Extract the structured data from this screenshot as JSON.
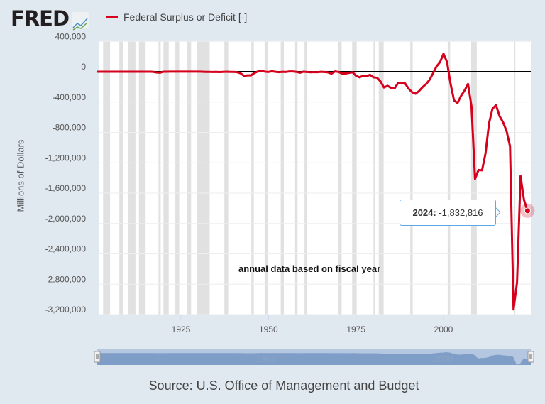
{
  "header": {
    "logo": "FRED",
    "logo_icon": "line-chart-icon"
  },
  "source": "Source: U.S. Office of Management and Budget",
  "tooltip": {
    "label": "2024:",
    "value": "-1,832,816"
  },
  "annotation": "annual data based on fiscal year",
  "navigator": {
    "tick_labels": [
      "1950",
      "2000"
    ]
  },
  "chart_data": {
    "type": "line",
    "title": "",
    "xlabel": "",
    "ylabel": "Millions of Dollars",
    "xlim": [
      1901,
      2024
    ],
    "ylim": [
      -3200000,
      400000
    ],
    "x_ticks": [
      "1925",
      "1950",
      "1975",
      "2000"
    ],
    "y_ticks": [
      "400,000",
      "0",
      "-400,000",
      "-800,000",
      "-1,200,000",
      "-1,600,000",
      "-2,000,000",
      "-2,400,000",
      "-2,800,000",
      "-3,200,000"
    ],
    "grid": true,
    "legend": "top-left",
    "series": [
      {
        "name": "Federal Surplus or Deficit [-]",
        "color": "#d6001c",
        "x": [
          1901,
          1902,
          1903,
          1904,
          1905,
          1906,
          1907,
          1908,
          1909,
          1910,
          1911,
          1912,
          1913,
          1914,
          1915,
          1916,
          1917,
          1918,
          1919,
          1920,
          1921,
          1922,
          1923,
          1924,
          1925,
          1926,
          1927,
          1928,
          1929,
          1930,
          1931,
          1932,
          1933,
          1934,
          1935,
          1936,
          1937,
          1938,
          1939,
          1940,
          1941,
          1942,
          1943,
          1944,
          1945,
          1946,
          1947,
          1948,
          1949,
          1950,
          1951,
          1952,
          1953,
          1954,
          1955,
          1956,
          1957,
          1958,
          1959,
          1960,
          1961,
          1962,
          1963,
          1964,
          1965,
          1966,
          1967,
          1968,
          1969,
          1970,
          1971,
          1972,
          1973,
          1974,
          1975,
          1976,
          1977,
          1978,
          1979,
          1980,
          1981,
          1982,
          1983,
          1984,
          1985,
          1986,
          1987,
          1988,
          1989,
          1990,
          1991,
          1992,
          1993,
          1994,
          1995,
          1996,
          1997,
          1998,
          1999,
          2000,
          2001,
          2002,
          2003,
          2004,
          2005,
          2006,
          2007,
          2008,
          2009,
          2010,
          2011,
          2012,
          2013,
          2014,
          2015,
          2016,
          2017,
          2018,
          2019,
          2020,
          2021,
          2022,
          2023,
          2024
        ],
        "values": [
          63,
          77,
          54,
          -23,
          -23,
          25,
          87,
          -57,
          -89,
          -18,
          11,
          3,
          0,
          -1,
          -63,
          48,
          -853,
          -9032,
          -13363,
          291,
          509,
          736,
          713,
          963,
          717,
          865,
          1155,
          939,
          734,
          738,
          -462,
          -2735,
          -2602,
          -3586,
          -2803,
          -4304,
          -2193,
          -89,
          -2846,
          -2920,
          -4941,
          -20503,
          -54554,
          -47557,
          -47553,
          -15936,
          4018,
          11796,
          580,
          -3119,
          6102,
          -1519,
          -6493,
          -1154,
          -2993,
          3947,
          3412,
          -2769,
          -12849,
          301,
          -3335,
          -7146,
          -4756,
          -5915,
          -1411,
          -3698,
          -8643,
          -25161,
          3242,
          -2842,
          -23033,
          -23373,
          -14908,
          -6135,
          -53242,
          -73732,
          -53659,
          -59185,
          -40726,
          -73830,
          -78968,
          -127977,
          -207802,
          -185367,
          -212308,
          -221227,
          -149730,
          -155178,
          -152639,
          -221036,
          -269238,
          -290321,
          -255051,
          -203186,
          -163952,
          -107431,
          -21884,
          69270,
          125610,
          236241,
          128236,
          -157758,
          -377585,
          -412727,
          -318346,
          -248181,
          -160701,
          -458553,
          -1412688,
          -1294373,
          -1299599,
          -1076573,
          -679775,
          -484600,
          -441960,
          -584651,
          -665446,
          -779137,
          -983587,
          -3132460,
          -2775306,
          -1375905,
          -1693708,
          -1832816
        ]
      }
    ],
    "recessions": [
      [
        1902.75,
        1904.75
      ],
      [
        1907.4,
        1908.5
      ],
      [
        1910,
        1912
      ],
      [
        1913,
        1914.9
      ],
      [
        1918.6,
        1919.2
      ],
      [
        1920,
        1921.5
      ],
      [
        1923.4,
        1924.5
      ],
      [
        1926.8,
        1927.9
      ],
      [
        1929.6,
        1933.2
      ],
      [
        1937.4,
        1938.5
      ],
      [
        1945.1,
        1945.8
      ],
      [
        1948.9,
        1949.8
      ],
      [
        1953.5,
        1954.4
      ],
      [
        1957.6,
        1958.3
      ],
      [
        1960.3,
        1961.1
      ],
      [
        1969.9,
        1970.9
      ],
      [
        1973.9,
        1975.2
      ],
      [
        1980,
        1980.5
      ],
      [
        1981.5,
        1982.9
      ],
      [
        1990.5,
        1991.2
      ],
      [
        2001.2,
        2001.9
      ],
      [
        2007.9,
        2009.5
      ],
      [
        2020.1,
        2020.3
      ]
    ],
    "colors": {
      "line": "#d6001c",
      "recession": "#e1e1e1",
      "zero_line": "#000000",
      "navigator": "#7e9ec8"
    }
  }
}
